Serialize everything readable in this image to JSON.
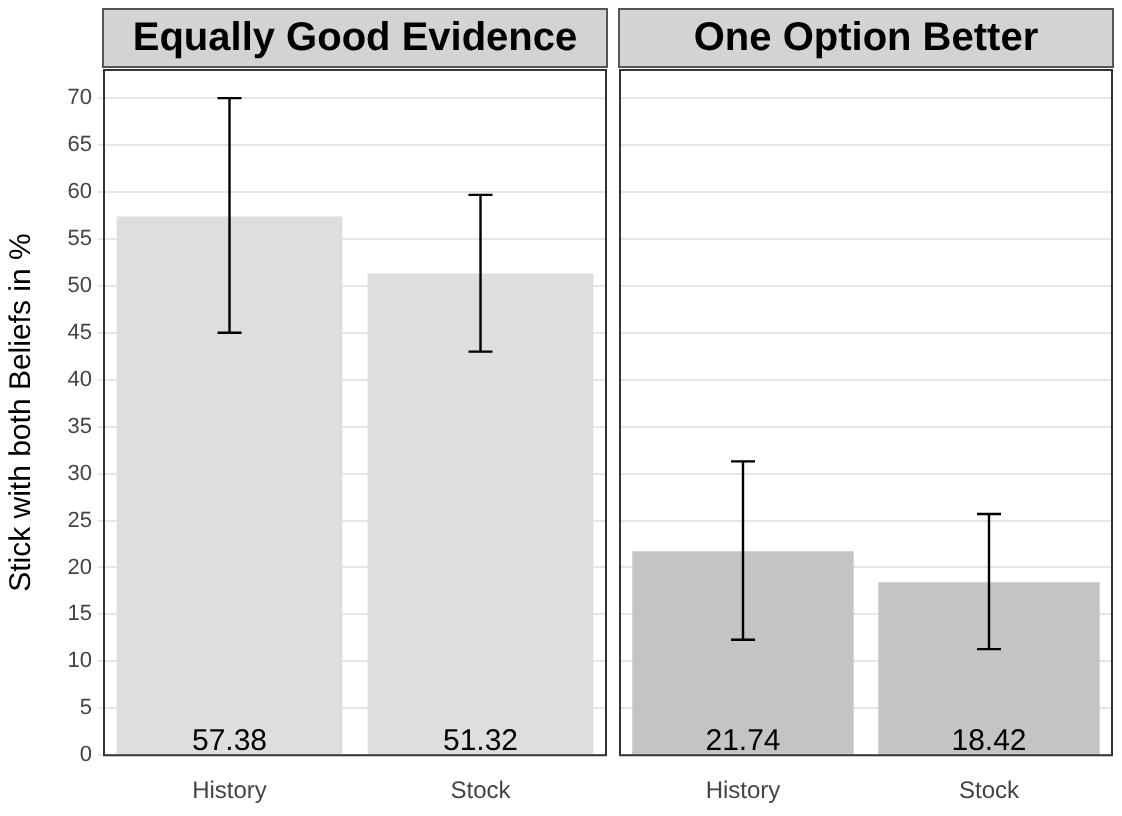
{
  "chart_data": [
    {
      "type": "bar",
      "title": "Equally Good Evidence",
      "ylabel": "Stick with both Beliefs in %",
      "categories": [
        "History",
        "Stock"
      ],
      "values": [
        57.38,
        51.32
      ],
      "errors": [
        [
          45,
          70
        ],
        [
          43,
          59.7
        ]
      ],
      "colors": [
        "#dedede",
        "#dedede"
      ],
      "ylim": [
        0,
        73
      ],
      "yticks": [
        0,
        5,
        10,
        15,
        20,
        25,
        30,
        35,
        40,
        45,
        50,
        55,
        60,
        65,
        70
      ],
      "grid": "y",
      "data_labels": true
    },
    {
      "type": "bar",
      "title": "One Option Better",
      "categories": [
        "History",
        "Stock"
      ],
      "values": [
        21.74,
        18.42
      ],
      "errors": [
        [
          12.3,
          31.3
        ],
        [
          11.3,
          25.7
        ]
      ],
      "colors": [
        "#c4c4c4",
        "#c4c4c4"
      ],
      "ylim": [
        0,
        73
      ],
      "yticks": [
        0,
        5,
        10,
        15,
        20,
        25,
        30,
        35,
        40,
        45,
        50,
        55,
        60,
        65,
        70
      ],
      "grid": "y",
      "data_labels": true,
      "tick_labels": "x"
    }
  ]
}
